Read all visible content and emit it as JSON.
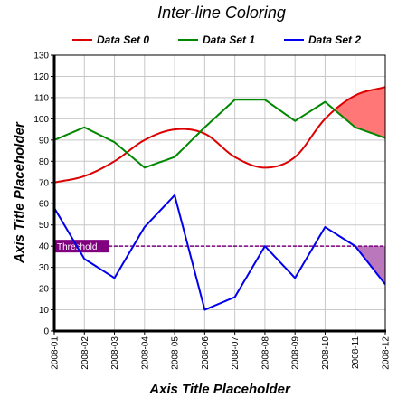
{
  "chart_data": {
    "type": "line",
    "title": "Inter-line Coloring",
    "xlabel": "Axis Title Placeholder",
    "ylabel": "Axis Title Placeholder",
    "categories": [
      "2008-01",
      "2008-02",
      "2008-03",
      "2008-04",
      "2008-05",
      "2008-06",
      "2008-07",
      "2008-08",
      "2008-09",
      "2008-10",
      "2008-11",
      "2008-12"
    ],
    "ylim": [
      0,
      130
    ],
    "yticks": [
      0,
      10,
      20,
      30,
      40,
      50,
      60,
      70,
      80,
      90,
      100,
      110,
      120,
      130
    ],
    "grid": true,
    "legend_position": "top",
    "series": [
      {
        "name": "Data Set 0",
        "color": "#dd0000",
        "smooth": true,
        "values": [
          70,
          73,
          80,
          90,
          95,
          93,
          82,
          77,
          82,
          100,
          111,
          115
        ]
      },
      {
        "name": "Data Set 1",
        "color": "#008800",
        "smooth": false,
        "values": [
          90,
          96,
          89,
          77,
          82,
          96,
          109,
          109,
          99,
          108,
          96,
          91
        ]
      },
      {
        "name": "Data Set 2",
        "color": "#0000ee",
        "smooth": false,
        "values": [
          58,
          34,
          25,
          49,
          64,
          10,
          16,
          40,
          25,
          49,
          40,
          22
        ]
      }
    ],
    "fills": [
      {
        "between": [
          "Data Set 0",
          "Data Set 1"
        ],
        "above_color": "#ff7777",
        "below_color": "#77bb77"
      },
      {
        "between": [
          "Data Set 2",
          "Threshold"
        ],
        "above_color": "#7777ff",
        "below_color": "#bb77bb"
      }
    ],
    "threshold": {
      "label": "Threshold",
      "value": 40,
      "color": "#800080",
      "label_background": "#800080"
    }
  }
}
